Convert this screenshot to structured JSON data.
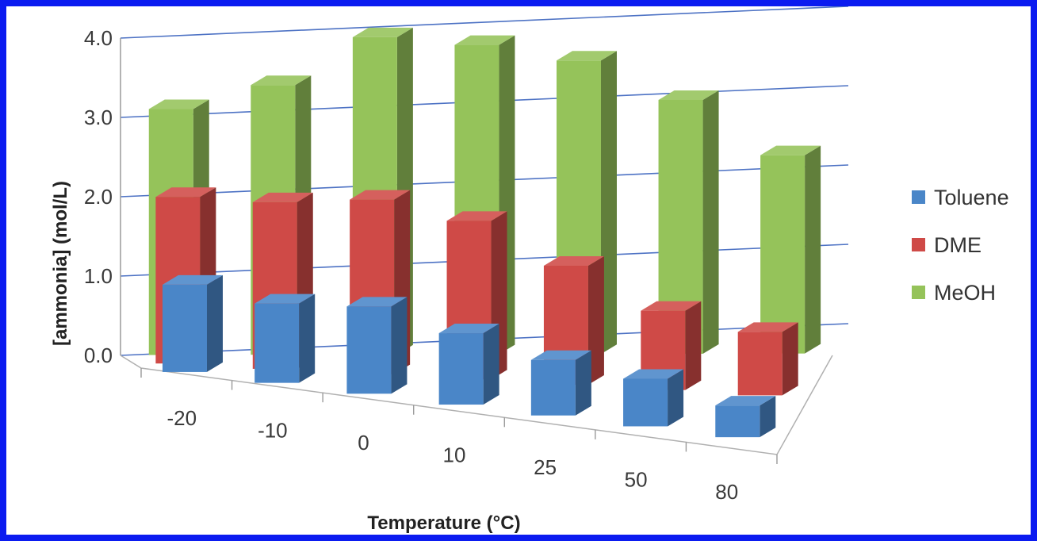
{
  "chart_data": {
    "type": "bar",
    "subtype": "3d-clustered-columns",
    "title": "",
    "xlabel": "Temperature (°C)",
    "ylabel": "[ammonia] (mol/L)",
    "categories": [
      "-20",
      "-10",
      "0",
      "10",
      "25",
      "50",
      "80"
    ],
    "ylim": [
      0,
      4
    ],
    "yticks": [
      "0.0",
      "1.0",
      "2.0",
      "3.0",
      "4.0"
    ],
    "grid": true,
    "legend_position": "right",
    "series": [
      {
        "name": "Toluene",
        "color": "#4a86c8",
        "values": [
          1.1,
          1.0,
          1.1,
          0.9,
          0.7,
          0.6,
          0.4
        ]
      },
      {
        "name": "DME",
        "color": "#cf4a47",
        "values": [
          2.1,
          2.1,
          2.2,
          2.0,
          1.5,
          1.0,
          0.8
        ]
      },
      {
        "name": "MeOH",
        "color": "#95c35a",
        "values": [
          3.1,
          3.4,
          4.0,
          3.9,
          3.7,
          3.2,
          2.5
        ]
      }
    ]
  }
}
